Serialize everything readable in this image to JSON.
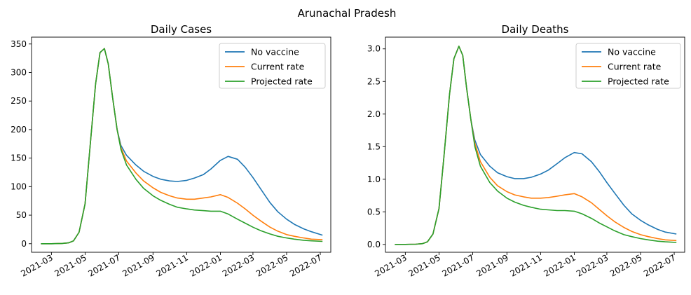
{
  "figure": {
    "suptitle": "Arunachal Pradesh"
  },
  "chart_data": [
    {
      "type": "line",
      "title": "Daily Cases",
      "xlabel": "",
      "ylabel": "",
      "ylim": [
        -15,
        362
      ],
      "xlim": [
        "2021-01-24",
        "2022-07-20"
      ],
      "x_ticks": [
        "2021-03",
        "2021-05",
        "2021-07",
        "2021-09",
        "2021-11",
        "2022-01",
        "2022-03",
        "2022-05",
        "2022-07"
      ],
      "y_ticks": [
        0,
        50,
        100,
        150,
        200,
        250,
        300,
        350
      ],
      "legend": {
        "position": "top-right",
        "entries": [
          "No vaccine",
          "Current rate",
          "Projected rate"
        ]
      },
      "grid": false,
      "x": [
        "2021-02-10",
        "2021-03-01",
        "2021-03-20",
        "2021-04-01",
        "2021-04-10",
        "2021-04-20",
        "2021-05-01",
        "2021-05-10",
        "2021-05-20",
        "2021-05-28",
        "2021-06-05",
        "2021-06-12",
        "2021-06-20",
        "2021-06-28",
        "2021-07-05",
        "2021-07-15",
        "2021-08-01",
        "2021-08-15",
        "2021-09-01",
        "2021-09-15",
        "2021-10-01",
        "2021-10-15",
        "2021-11-01",
        "2021-11-15",
        "2021-12-01",
        "2021-12-15",
        "2022-01-01",
        "2022-01-15",
        "2022-02-01",
        "2022-02-15",
        "2022-03-01",
        "2022-03-15",
        "2022-04-01",
        "2022-04-15",
        "2022-05-01",
        "2022-05-15",
        "2022-06-01",
        "2022-06-15",
        "2022-07-05"
      ],
      "series": [
        {
          "name": "No vaccine",
          "color": "#1f77b4",
          "values": [
            0,
            0,
            0.5,
            1.5,
            5,
            20,
            70,
            170,
            280,
            335,
            342,
            315,
            255,
            200,
            172,
            155,
            138,
            127,
            118,
            113,
            110,
            109,
            111,
            115,
            121,
            131,
            146,
            153,
            148,
            134,
            116,
            96,
            72,
            56,
            43,
            34,
            26,
            21,
            15
          ]
        },
        {
          "name": "Current rate",
          "color": "#ff7f0e",
          "values": [
            0,
            0,
            0.5,
            1.5,
            5,
            20,
            70,
            170,
            280,
            335,
            342,
            315,
            255,
            200,
            168,
            145,
            124,
            110,
            98,
            90,
            84,
            80,
            78,
            78,
            80,
            82,
            86,
            81,
            71,
            61,
            50,
            40,
            29,
            22,
            16,
            13,
            10,
            8,
            7
          ]
        },
        {
          "name": "Projected rate",
          "color": "#2ca02c",
          "values": [
            0,
            0,
            0.5,
            1.5,
            5,
            20,
            70,
            170,
            280,
            335,
            342,
            315,
            255,
            200,
            165,
            138,
            113,
            97,
            84,
            76,
            69,
            64,
            61,
            59,
            58,
            57,
            57,
            52,
            43,
            36,
            29,
            23,
            17,
            13,
            10,
            8,
            6,
            5,
            4
          ]
        }
      ]
    },
    {
      "type": "line",
      "title": "Daily Deaths",
      "xlabel": "",
      "ylabel": "",
      "ylim": [
        -0.12,
        3.18
      ],
      "xlim": [
        "2021-01-24",
        "2022-07-20"
      ],
      "x_ticks": [
        "2021-03",
        "2021-05",
        "2021-07",
        "2021-09",
        "2021-11",
        "2022-01",
        "2022-03",
        "2022-05",
        "2022-07"
      ],
      "y_ticks": [
        0.0,
        0.5,
        1.0,
        1.5,
        2.0,
        2.5,
        3.0
      ],
      "y_tick_labels": [
        "0.0",
        "0.5",
        "1.0",
        "1.5",
        "2.0",
        "2.5",
        "3.0"
      ],
      "legend": {
        "position": "top-right",
        "entries": [
          "No vaccine",
          "Current rate",
          "Projected rate"
        ]
      },
      "grid": false,
      "x": [
        "2021-02-10",
        "2021-03-01",
        "2021-03-20",
        "2021-04-01",
        "2021-04-10",
        "2021-04-20",
        "2021-05-01",
        "2021-05-10",
        "2021-05-20",
        "2021-05-28",
        "2021-06-06",
        "2021-06-13",
        "2021-06-20",
        "2021-06-28",
        "2021-07-05",
        "2021-07-15",
        "2021-08-01",
        "2021-08-15",
        "2021-09-01",
        "2021-09-15",
        "2021-10-01",
        "2021-10-15",
        "2021-11-01",
        "2021-11-15",
        "2021-12-01",
        "2021-12-15",
        "2022-01-01",
        "2022-01-15",
        "2022-02-01",
        "2022-02-15",
        "2022-03-01",
        "2022-03-15",
        "2022-04-01",
        "2022-04-15",
        "2022-05-01",
        "2022-05-15",
        "2022-06-01",
        "2022-06-15",
        "2022-07-05"
      ],
      "series": [
        {
          "name": "No vaccine",
          "color": "#1f77b4",
          "values": [
            0,
            0,
            0.004,
            0.012,
            0.04,
            0.16,
            0.55,
            1.35,
            2.3,
            2.85,
            3.04,
            2.9,
            2.4,
            1.9,
            1.6,
            1.38,
            1.2,
            1.1,
            1.04,
            1.01,
            1.01,
            1.03,
            1.08,
            1.14,
            1.24,
            1.33,
            1.41,
            1.39,
            1.27,
            1.12,
            0.95,
            0.79,
            0.6,
            0.47,
            0.37,
            0.3,
            0.23,
            0.19,
            0.16
          ]
        },
        {
          "name": "Current rate",
          "color": "#ff7f0e",
          "values": [
            0,
            0,
            0.004,
            0.012,
            0.04,
            0.16,
            0.55,
            1.35,
            2.3,
            2.85,
            3.04,
            2.9,
            2.4,
            1.9,
            1.55,
            1.27,
            1.03,
            0.9,
            0.81,
            0.76,
            0.73,
            0.71,
            0.71,
            0.72,
            0.74,
            0.76,
            0.78,
            0.73,
            0.64,
            0.54,
            0.44,
            0.35,
            0.26,
            0.2,
            0.15,
            0.12,
            0.09,
            0.07,
            0.06
          ]
        },
        {
          "name": "Projected rate",
          "color": "#2ca02c",
          "values": [
            0,
            0,
            0.004,
            0.012,
            0.04,
            0.16,
            0.55,
            1.35,
            2.3,
            2.85,
            3.04,
            2.9,
            2.4,
            1.9,
            1.5,
            1.2,
            0.95,
            0.82,
            0.71,
            0.65,
            0.6,
            0.57,
            0.54,
            0.53,
            0.52,
            0.52,
            0.51,
            0.47,
            0.4,
            0.33,
            0.27,
            0.21,
            0.15,
            0.12,
            0.09,
            0.07,
            0.05,
            0.04,
            0.03
          ]
        }
      ]
    }
  ]
}
